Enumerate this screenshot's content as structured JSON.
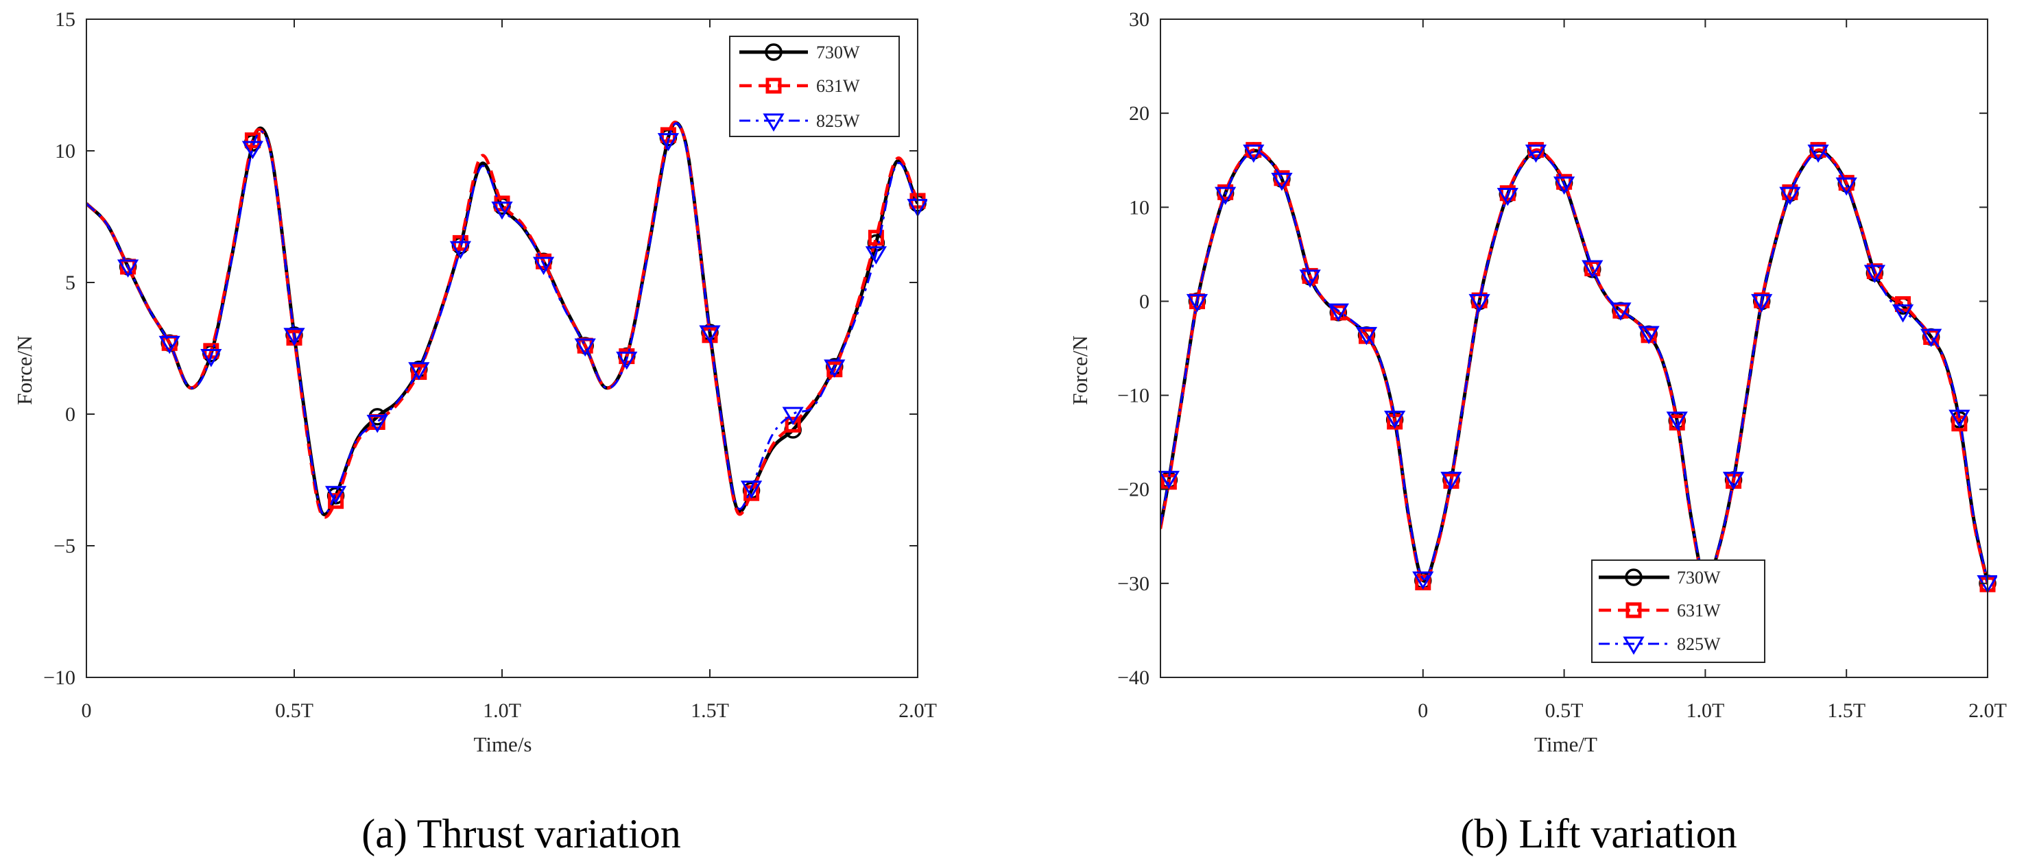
{
  "chart_data": [
    {
      "type": "line",
      "caption": "(a) Thrust variation",
      "xlabel": "Time/s",
      "ylabel": "Force/N",
      "xlim": [
        0,
        2.0
      ],
      "ylim": [
        -10,
        15
      ],
      "x_ticks": [
        0,
        0.5,
        1.0,
        1.5,
        2.0
      ],
      "x_tick_labels": [
        "0",
        "0.5T",
        "1.0T",
        "1.5T",
        "2.0T"
      ],
      "y_ticks": [
        -10,
        -5,
        0,
        5,
        10,
        15
      ],
      "y_tick_labels": [
        "−10",
        "−5",
        "0",
        "5",
        "10",
        "15"
      ],
      "grid": false,
      "legend": "top-right",
      "x": [
        0,
        0.05,
        0.1,
        0.15,
        0.2,
        0.25,
        0.3,
        0.35,
        0.4,
        0.425,
        0.45,
        0.5,
        0.55,
        0.57,
        0.6,
        0.65,
        0.7,
        0.75,
        0.8,
        0.85,
        0.9,
        0.95,
        1.0,
        1.05,
        1.1,
        1.15,
        1.2,
        1.25,
        1.3,
        1.35,
        1.4,
        1.425,
        1.45,
        1.5,
        1.55,
        1.57,
        1.6,
        1.65,
        1.7,
        1.75,
        1.8,
        1.85,
        1.9,
        1.95,
        2.0
      ],
      "series": [
        {
          "name": "730W",
          "color": "#000000",
          "line_style": "solid",
          "marker": "circle",
          "y": [
            8.0,
            7.2,
            5.6,
            4.0,
            2.7,
            1.0,
            2.3,
            6.0,
            10.3,
            10.8,
            9.4,
            3.0,
            -2.6,
            -3.8,
            -3.1,
            -1.0,
            -0.1,
            0.5,
            1.7,
            3.8,
            6.4,
            9.5,
            7.9,
            7.1,
            5.8,
            4.1,
            2.6,
            1.0,
            2.2,
            6.1,
            10.5,
            11.0,
            9.6,
            3.1,
            -2.5,
            -3.7,
            -2.9,
            -1.3,
            -0.6,
            0.4,
            1.8,
            3.8,
            6.5,
            9.6,
            8.0
          ]
        },
        {
          "name": "631W",
          "color": "#ff0000",
          "line_style": "dashed",
          "marker": "square",
          "y": [
            8.0,
            7.2,
            5.6,
            4.0,
            2.7,
            1.0,
            2.4,
            6.1,
            10.4,
            10.7,
            9.4,
            2.9,
            -2.8,
            -3.9,
            -3.3,
            -1.1,
            -0.3,
            0.4,
            1.6,
            3.8,
            6.5,
            9.8,
            8.0,
            7.2,
            5.8,
            4.1,
            2.6,
            1.0,
            2.2,
            6.2,
            10.6,
            11.0,
            9.6,
            3.0,
            -2.6,
            -3.8,
            -3.0,
            -1.2,
            -0.4,
            0.5,
            1.7,
            3.9,
            6.7,
            9.7,
            8.1
          ]
        },
        {
          "name": "825W",
          "color": "#0000ff",
          "line_style": "dash-dot",
          "marker": "triangle-down",
          "y": [
            8.0,
            7.2,
            5.6,
            4.0,
            2.7,
            1.0,
            2.2,
            5.9,
            10.1,
            10.7,
            9.3,
            3.0,
            -2.6,
            -3.8,
            -3.0,
            -1.0,
            -0.3,
            0.5,
            1.7,
            3.7,
            6.3,
            9.4,
            7.8,
            7.1,
            5.7,
            4.0,
            2.6,
            1.0,
            2.1,
            6.0,
            10.4,
            11.0,
            9.5,
            3.1,
            -2.5,
            -3.6,
            -2.8,
            -0.8,
            0.0,
            0.3,
            1.8,
            3.6,
            6.1,
            9.5,
            7.9
          ]
        }
      ]
    },
    {
      "type": "line",
      "caption": "(b) Lift variation",
      "xlabel": "Time/T",
      "ylabel": "Force/N",
      "xlim": [
        -0.93,
        2.0
      ],
      "ylim": [
        -40,
        30
      ],
      "x_ticks": [
        0,
        0.5,
        1.0,
        1.5,
        2.0
      ],
      "x_tick_labels": [
        "0",
        "0.5T",
        "1.0T",
        "1.5T",
        "2.0T"
      ],
      "y_ticks": [
        -40,
        -30,
        -20,
        -10,
        0,
        10,
        20,
        30
      ],
      "y_tick_labels": [
        "−40",
        "−30",
        "−20",
        "−10",
        "0",
        "10",
        "20",
        "30"
      ],
      "grid": false,
      "legend": "bottom-center",
      "x": [
        -0.93,
        -0.9,
        -0.85,
        -0.8,
        -0.75,
        -0.7,
        -0.65,
        -0.6,
        -0.55,
        -0.5,
        -0.45,
        -0.4,
        -0.35,
        -0.3,
        -0.25,
        -0.2,
        -0.15,
        -0.1,
        -0.05,
        0,
        0.05,
        0.1,
        0.15,
        0.2,
        0.25,
        0.3,
        0.35,
        0.4,
        0.45,
        0.5,
        0.55,
        0.6,
        0.65,
        0.7,
        0.75,
        0.8,
        0.85,
        0.9,
        0.95,
        1.0,
        1.05,
        1.1,
        1.15,
        1.2,
        1.25,
        1.3,
        1.35,
        1.4,
        1.45,
        1.5,
        1.55,
        1.6,
        1.65,
        1.7,
        1.75,
        1.8,
        1.85,
        1.9,
        1.95,
        2.0
      ],
      "series": [
        {
          "name": "730W",
          "color": "#000000",
          "line_style": "solid",
          "marker": "circle",
          "y": [
            -24.0,
            -19.0,
            -9.5,
            0.0,
            6.5,
            11.5,
            14.6,
            16.0,
            15.2,
            13.0,
            8.2,
            2.6,
            0.1,
            -1.2,
            -2.2,
            -3.6,
            -6.5,
            -12.6,
            -23.0,
            -29.7,
            -26.0,
            -19.0,
            -9.5,
            0.0,
            6.5,
            11.4,
            14.5,
            16.0,
            15.0,
            12.6,
            8.0,
            3.4,
            0.5,
            -1.0,
            -2.0,
            -3.5,
            -6.5,
            -12.7,
            -23.0,
            -29.8,
            -26.0,
            -19.0,
            -9.5,
            0.0,
            6.5,
            11.5,
            14.5,
            16.0,
            15.0,
            12.5,
            8.0,
            3.0,
            0.6,
            -0.5,
            -2.0,
            -3.8,
            -6.5,
            -12.6,
            -23.0,
            -30.0
          ]
        },
        {
          "name": "631W",
          "color": "#ff0000",
          "line_style": "dashed",
          "marker": "square",
          "y": [
            -24.2,
            -19.2,
            -9.6,
            0.0,
            6.5,
            11.6,
            14.7,
            16.1,
            15.3,
            13.1,
            8.3,
            2.7,
            0.1,
            -1.2,
            -2.2,
            -3.7,
            -6.6,
            -12.8,
            -23.2,
            -29.9,
            -26.2,
            -19.1,
            -9.5,
            0.1,
            6.6,
            11.5,
            14.6,
            16.1,
            15.1,
            12.7,
            8.1,
            3.5,
            0.5,
            -1.0,
            -2.0,
            -3.6,
            -6.6,
            -12.9,
            -23.2,
            -30.0,
            -26.1,
            -19.1,
            -9.5,
            0.1,
            6.6,
            11.6,
            14.6,
            16.1,
            15.1,
            12.6,
            8.1,
            3.2,
            0.7,
            -0.3,
            -1.9,
            -3.8,
            -6.7,
            -13.0,
            -23.3,
            -30.1
          ]
        },
        {
          "name": "825W",
          "color": "#0000ff",
          "line_style": "dash-dot",
          "marker": "triangle-down",
          "y": [
            -23.8,
            -18.8,
            -9.4,
            0.0,
            6.4,
            11.4,
            14.5,
            15.9,
            15.1,
            12.9,
            8.1,
            2.6,
            0.2,
            -1.0,
            -2.1,
            -3.5,
            -6.4,
            -12.4,
            -22.8,
            -29.5,
            -25.8,
            -18.9,
            -9.4,
            0.0,
            6.4,
            11.3,
            14.4,
            15.9,
            14.9,
            12.5,
            8.1,
            3.6,
            0.6,
            -0.9,
            -2.0,
            -3.4,
            -6.4,
            -12.5,
            -22.8,
            -29.6,
            -25.9,
            -18.9,
            -9.4,
            0.0,
            6.4,
            11.4,
            14.4,
            15.9,
            14.9,
            12.4,
            7.9,
            3.1,
            0.3,
            -1.1,
            -2.1,
            -3.7,
            -6.4,
            -12.3,
            -22.8,
            -29.9
          ]
        }
      ]
    }
  ]
}
